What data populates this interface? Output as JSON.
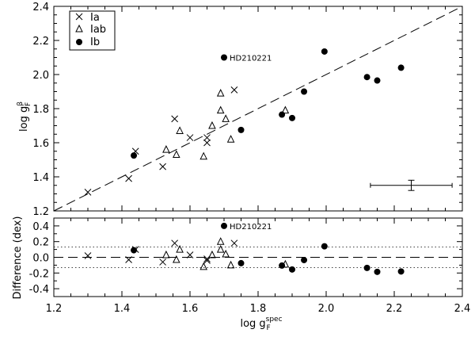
{
  "chart_data": [
    {
      "type": "scatter",
      "panel": "top",
      "title": "",
      "xlabel": "log g_F^spec",
      "ylabel": "log g_F^β",
      "xlim": [
        1.2,
        2.4
      ],
      "ylim": [
        1.2,
        2.4
      ],
      "x_ticks": [
        "1.2",
        "1.4",
        "1.6",
        "1.8",
        "2.0",
        "2.2",
        "2.4"
      ],
      "y_ticks": [
        "1.2",
        "1.4",
        "1.6",
        "1.8",
        "2.0",
        "2.2",
        "2.4"
      ],
      "grid": false,
      "legend_position": "top-left",
      "reference_line": "one-to-one (dashed)",
      "error_bar": {
        "x": 2.25,
        "y": 1.35,
        "xerr": 0.12,
        "yerr": 0.03
      },
      "annotations": [
        {
          "text": "HD210221",
          "x": 1.7,
          "y": 2.1
        }
      ],
      "series": [
        {
          "name": "Ia",
          "marker": "cross",
          "points": [
            [
              1.3,
              1.31
            ],
            [
              1.42,
              1.39
            ],
            [
              1.44,
              1.55
            ],
            [
              1.52,
              1.46
            ],
            [
              1.555,
              1.74
            ],
            [
              1.6,
              1.63
            ],
            [
              1.65,
              1.6
            ],
            [
              1.65,
              1.63
            ],
            [
              1.73,
              1.91
            ]
          ]
        },
        {
          "name": "Iab",
          "marker": "triangle",
          "points": [
            [
              1.53,
              1.56
            ],
            [
              1.56,
              1.53
            ],
            [
              1.57,
              1.67
            ],
            [
              1.64,
              1.52
            ],
            [
              1.665,
              1.7
            ],
            [
              1.69,
              1.79
            ],
            [
              1.69,
              1.89
            ],
            [
              1.705,
              1.74
            ],
            [
              1.72,
              1.62
            ],
            [
              1.88,
              1.79
            ]
          ]
        },
        {
          "name": "Ib",
          "marker": "dot",
          "points": [
            [
              1.435,
              1.525
            ],
            [
              1.7,
              2.1
            ],
            [
              1.75,
              1.675
            ],
            [
              1.87,
              1.765
            ],
            [
              1.9,
              1.745
            ],
            [
              1.935,
              1.9
            ],
            [
              1.995,
              2.135
            ],
            [
              2.12,
              1.985
            ],
            [
              2.15,
              1.965
            ],
            [
              2.22,
              2.04
            ]
          ]
        }
      ]
    },
    {
      "type": "scatter",
      "panel": "bottom",
      "title": "",
      "xlabel": "log g_F^spec",
      "ylabel": "Difference (dex)",
      "xlim": [
        1.2,
        2.4
      ],
      "ylim": [
        -0.5,
        0.5
      ],
      "x_ticks": [
        "1.2",
        "1.4",
        "1.6",
        "1.8",
        "2.0",
        "2.2",
        "2.4"
      ],
      "y_ticks": [
        "-0.4",
        "-0.2",
        "0.0",
        "0.2",
        "0.4"
      ],
      "grid": false,
      "reference_line": "y = 0 (dashed)",
      "bands": [
        0.13,
        -0.13
      ],
      "annotations": [
        {
          "text": "HD210221",
          "x": 1.7,
          "y": 0.4
        }
      ],
      "series": [
        {
          "name": "Ia",
          "marker": "cross",
          "points": [
            [
              1.3,
              0.02
            ],
            [
              1.42,
              -0.03
            ],
            [
              1.44,
              0.1
            ],
            [
              1.52,
              -0.06
            ],
            [
              1.555,
              0.18
            ],
            [
              1.6,
              0.03
            ],
            [
              1.65,
              -0.04
            ],
            [
              1.65,
              -0.02
            ],
            [
              1.73,
              0.18
            ]
          ]
        },
        {
          "name": "Iab",
          "marker": "triangle",
          "points": [
            [
              1.53,
              0.03
            ],
            [
              1.56,
              -0.03
            ],
            [
              1.57,
              0.1
            ],
            [
              1.64,
              -0.12
            ],
            [
              1.665,
              0.03
            ],
            [
              1.69,
              0.1
            ],
            [
              1.69,
              0.2
            ],
            [
              1.705,
              0.04
            ],
            [
              1.72,
              -0.1
            ],
            [
              1.88,
              -0.09
            ]
          ]
        },
        {
          "name": "Ib",
          "marker": "dot",
          "points": [
            [
              1.435,
              0.09
            ],
            [
              1.7,
              0.4
            ],
            [
              1.75,
              -0.075
            ],
            [
              1.87,
              -0.105
            ],
            [
              1.9,
              -0.155
            ],
            [
              1.935,
              -0.035
            ],
            [
              1.995,
              0.14
            ],
            [
              2.12,
              -0.135
            ],
            [
              2.15,
              -0.185
            ],
            [
              2.22,
              -0.18
            ]
          ]
        }
      ]
    }
  ],
  "labels": {
    "top_ylabel_base": "log g",
    "top_ylabel_sup": "β",
    "top_ylabel_sub": "F",
    "xlabel_base": "log g",
    "xlabel_sup": "spec",
    "xlabel_sub": "F",
    "bottom_ylabel": "Difference (dex)"
  },
  "legend": [
    {
      "marker": "cross",
      "label": "Ia"
    },
    {
      "marker": "triangle",
      "label": "Iab"
    },
    {
      "marker": "dot",
      "label": "Ib"
    }
  ],
  "colors": {
    "ink": "#000000",
    "background": "#ffffff"
  }
}
